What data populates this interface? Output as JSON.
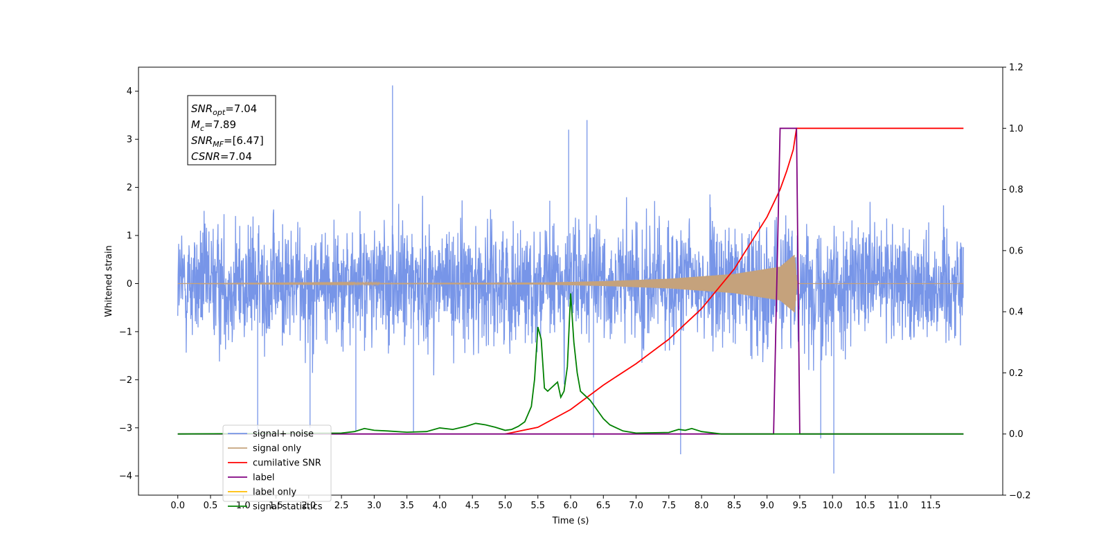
{
  "chart_data": {
    "type": "line",
    "xlabel": "Time (s)",
    "ylabel": "Whitened strain",
    "xlim": [
      -0.6,
      12.6
    ],
    "ylim": [
      -4.4,
      4.5
    ],
    "y2lim": [
      -0.2,
      1.2
    ],
    "x_ticks": [
      0.0,
      0.5,
      1.0,
      1.5,
      2.0,
      2.5,
      3.0,
      3.5,
      4.0,
      4.5,
      5.0,
      5.5,
      6.0,
      6.5,
      7.0,
      7.5,
      8.0,
      8.5,
      9.0,
      9.5,
      10.0,
      10.5,
      11.0,
      11.5
    ],
    "y_ticks": [
      -4,
      -3,
      -2,
      -1,
      0,
      1,
      2,
      3,
      4
    ],
    "y2_ticks": [
      -0.2,
      0.0,
      0.2,
      0.4,
      0.6,
      0.8,
      1.0,
      1.2
    ],
    "grid": false,
    "legend_position": "lower-left",
    "annotation": {
      "lines": [
        {
          "sym": "SNR",
          "sub": "opt",
          "rest": "=7.04"
        },
        {
          "sym": "M",
          "sub": "c",
          "rest": "=7.89"
        },
        {
          "sym": "SNR",
          "sub": "MF",
          "rest": "=[6.47]"
        },
        {
          "sym": "CSNR",
          "sub": "",
          "rest": "=7.04"
        }
      ]
    },
    "series": [
      {
        "name": "signal+ noise",
        "axis": "left",
        "color": "#7795e8",
        "kind": "noise",
        "x_range": [
          0.0,
          12.0
        ],
        "typical_amplitude": 1.6,
        "extremes": [
          [
            3.28,
            4.12
          ],
          [
            10.02,
            -3.95
          ],
          [
            7.68,
            -3.55
          ],
          [
            6.25,
            3.4
          ],
          [
            9.82,
            -3.22
          ],
          [
            6.35,
            -3.2
          ],
          [
            1.22,
            -3.1
          ],
          [
            2.72,
            -3.08
          ],
          [
            3.6,
            -3.1
          ],
          [
            5.97,
            3.2
          ],
          [
            2.02,
            -3.0
          ]
        ]
      },
      {
        "name": "signal only",
        "axis": "left",
        "color": "#c5a27c",
        "kind": "chirp",
        "x_range": [
          0.0,
          12.0
        ],
        "envelope": [
          [
            0.0,
            0.0
          ],
          [
            5.5,
            0.02
          ],
          [
            6.5,
            0.05
          ],
          [
            7.5,
            0.1
          ],
          [
            8.5,
            0.2
          ],
          [
            9.2,
            0.35
          ],
          [
            9.42,
            0.6
          ],
          [
            9.46,
            0.0
          ],
          [
            12.0,
            0.0
          ]
        ]
      },
      {
        "name": "cumilative SNR",
        "axis": "right",
        "color": "#ff0000",
        "x": [
          5.0,
          5.5,
          6.0,
          6.5,
          7.0,
          7.5,
          8.0,
          8.5,
          9.0,
          9.2,
          9.3,
          9.4,
          9.45,
          9.5,
          12.0
        ],
        "y": [
          0.0,
          0.022,
          0.08,
          0.16,
          0.23,
          0.31,
          0.41,
          0.54,
          0.71,
          0.8,
          0.86,
          0.93,
          1.0,
          1.0,
          1.0
        ]
      },
      {
        "name": "label",
        "axis": "right",
        "color": "#800080",
        "x": [
          0.0,
          9.1,
          9.2,
          9.45,
          9.5,
          12.0
        ],
        "y": [
          0.0,
          0.0,
          1.0,
          1.0,
          0.0,
          0.0
        ]
      },
      {
        "name": "label only",
        "axis": "right",
        "color": "#ffbd00",
        "x": [],
        "y": []
      },
      {
        "name": "signal statistics",
        "axis": "right",
        "color": "#008000",
        "x": [
          0.0,
          2.5,
          2.7,
          2.85,
          3.0,
          3.2,
          3.5,
          3.8,
          4.0,
          4.2,
          4.4,
          4.55,
          4.7,
          4.85,
          5.0,
          5.1,
          5.2,
          5.3,
          5.4,
          5.45,
          5.5,
          5.55,
          5.6,
          5.65,
          5.7,
          5.75,
          5.8,
          5.85,
          5.9,
          5.95,
          6.0,
          6.05,
          6.1,
          6.15,
          6.2,
          6.3,
          6.4,
          6.5,
          6.6,
          6.8,
          7.0,
          7.5,
          7.65,
          7.75,
          7.85,
          8.0,
          8.3,
          12.0
        ],
        "y": [
          0.0,
          0.003,
          0.008,
          0.018,
          0.012,
          0.01,
          0.006,
          0.008,
          0.02,
          0.015,
          0.025,
          0.035,
          0.03,
          0.022,
          0.012,
          0.015,
          0.025,
          0.04,
          0.09,
          0.18,
          0.35,
          0.31,
          0.15,
          0.14,
          0.15,
          0.16,
          0.17,
          0.12,
          0.14,
          0.22,
          0.46,
          0.3,
          0.2,
          0.14,
          0.13,
          0.11,
          0.08,
          0.05,
          0.03,
          0.01,
          0.003,
          0.005,
          0.015,
          0.012,
          0.018,
          0.008,
          0.0,
          0.0
        ]
      }
    ]
  }
}
